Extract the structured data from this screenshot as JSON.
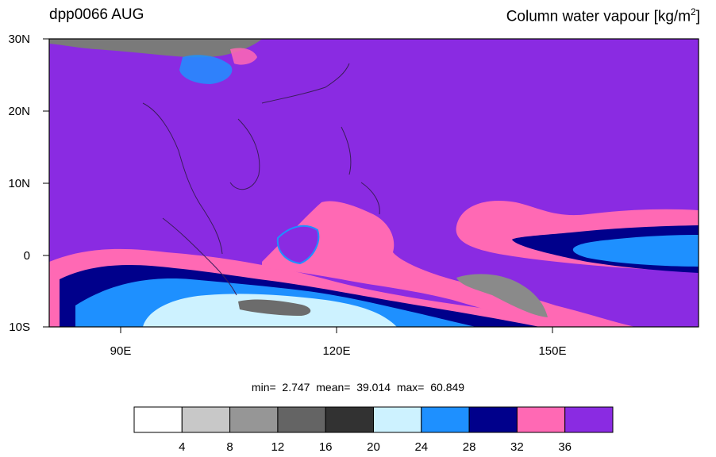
{
  "title": {
    "left": "dpp0066 AUG",
    "right_main": "Column water vapour [kg/m",
    "right_sup": "2",
    "right_end": "]"
  },
  "axes": {
    "lon_labels": [
      "90E",
      "120E",
      "150E"
    ],
    "lat_labels": [
      "30N",
      "20N",
      "10N",
      "0",
      "10S"
    ]
  },
  "stats": {
    "text": "min=  2.747  mean=  39.014  max=  60.849"
  },
  "colorbar": {
    "colors": [
      "#ffffff",
      "#c8c8c8",
      "#969696",
      "#646464",
      "#323232",
      "#cdf2ff",
      "#1e90ff",
      "#00008b",
      "#ff69b4",
      "#8a2be2"
    ],
    "labels": [
      "4",
      "8",
      "12",
      "16",
      "20",
      "24",
      "28",
      "32",
      "36"
    ]
  },
  "palette": {
    "ocean": "#8a2be2",
    "pink": "#ff69b4",
    "navy": "#00008b",
    "blue": "#1e90ff",
    "lightblue": "#cdf2ff",
    "gray": "#7a7a7a"
  }
}
